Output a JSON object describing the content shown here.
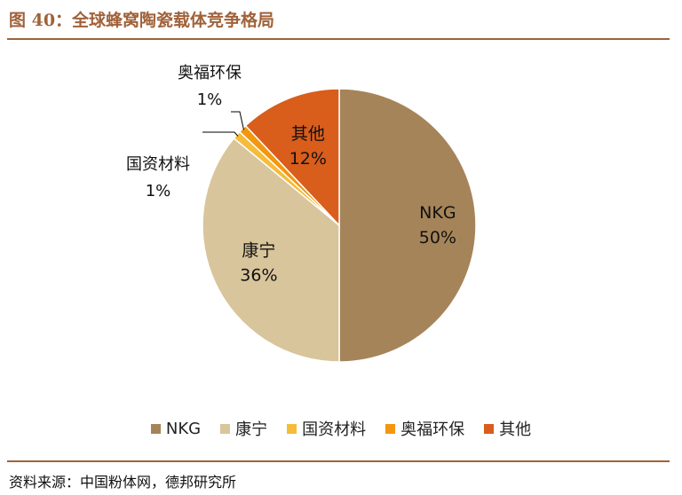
{
  "header": {
    "title": "图 40：全球蜂窝陶瓷载体竞争格局"
  },
  "footer": {
    "source": "资料来源：中国粉体网，德邦研究所"
  },
  "chart_data": {
    "type": "pie",
    "title": "",
    "start_angle_deg": 0,
    "direction": "clockwise",
    "legend_position": "bottom",
    "slices": [
      {
        "name": "NKG",
        "value": 50,
        "label": "50%",
        "color": "#a68459"
      },
      {
        "name": "康宁",
        "value": 36,
        "label": "36%",
        "color": "#d8c59b"
      },
      {
        "name": "国资材料",
        "value": 1,
        "label": "1%",
        "color": "#f5bc3a"
      },
      {
        "name": "奥福环保",
        "value": 1,
        "label": "1%",
        "color": "#f2970f"
      },
      {
        "name": "其他",
        "value": 12,
        "label": "12%",
        "color": "#d95d1b"
      }
    ]
  }
}
